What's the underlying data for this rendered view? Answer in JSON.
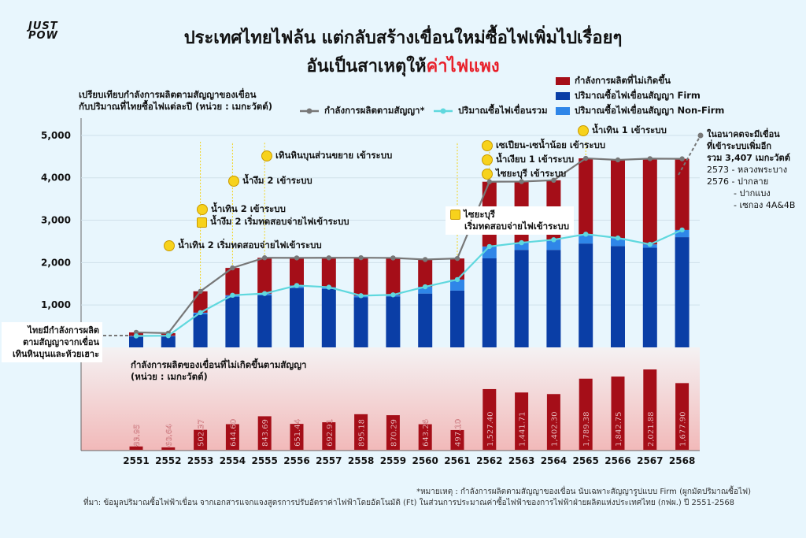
{
  "logo": {
    "line1": "JUST",
    "line2": "POW"
  },
  "title": {
    "line1": "ประเทศไทยไฟล้น แต่กลับสร้างเขื่อนใหม่ซื้อไฟเพิ่มไปเรื่อยๆ",
    "line2_prefix": "อันเป็นสาเหตุให้",
    "line2_highlight": "ค่าไฟแพง"
  },
  "subtitle": {
    "line1": "เปรียบเทียบกำลังการผลิตตามสัญญาของเขื่อน",
    "line2": "กับปริมาณที่ไทยซื้อไฟแต่ละปี (หน่วย : เมกะวัตต์)"
  },
  "legend": {
    "unused": "กำลังการผลิตที่ไม่เกิดขึ้น",
    "firm": "ปริมาณซื้อไฟเขื่อนสัญญา Firm",
    "nonfirm": "ปริมาณซื้อไฟเขื่อนสัญญา Non-Firm",
    "contract": "กำลังการผลิตตามสัญญา*",
    "total": "ปริมาณซื้อไฟเขื่อนรวม"
  },
  "colors": {
    "unused": "#a50e18",
    "firm": "#0a3ea6",
    "nonfirm": "#2f86e8",
    "contract": "#777777",
    "total": "#5fd8de",
    "highlight": "#e8202a"
  },
  "annotations": {
    "a2553": "น้ำเทิน 2 เริ่มทดสอบจ่ายไฟเข้าระบบ",
    "a2554a": "น้ำเทิน 2 เข้าระบบ",
    "a2554b": "น้ำงึม 2 เริ่มทดสอบจ่ายไฟเข้าระบบ",
    "a2555a": "น้ำงึม 2 เข้าระบบ",
    "a2555b": "เทินหินบุนส่วนขยาย เข้าระบบ",
    "a2561a": "ไซยะบุรี",
    "a2561b": "เริ่มทดสอบจ่ายไฟเข้าระบบ",
    "a2562a": "เซเปียน-เซน้ำน้อย เข้าระบบ",
    "a2562b": "น้ำเงียบ 1 เข้าระบบ",
    "a2562c": "ไซยะบุรี เข้าระบบ",
    "a2565": "น้ำเทิน 1 เข้าระบบ"
  },
  "left_note": {
    "line1": "ไทยมีกำลังการผลิต",
    "line2": "ตามสัญญาจากเขื่อน",
    "line3": "เทินหินบุนและห้วยเฮาะ"
  },
  "future_note": {
    "line1": "ในอนาคตจะมีเขื่อน",
    "line2": "ที่เข้าระบบเพิ่มอีก",
    "line3": "รวม 3,407 เมกะวัตต์",
    "item1": "2573 - หลวงพระบาง",
    "item2": "2576 - ปากลาย",
    "item3": "- ปากแบง",
    "item4": "- เซกอง 4A&4B"
  },
  "bottom_title": {
    "line1": "กำลังการผลิตของเขื่อนที่ไม่เกิดขึ้นตามสัญญา",
    "line2": "(หน่วย : เมกะวัตต์)"
  },
  "footnote": "*หมายเหตุ : กำลังการผลิตตามสัญญาของเขื่อน นับเฉพาะสัญญารูปแบบ Firm (ผูกมัดปริมาณซื้อไฟ)",
  "source": "ที่มา: ข้อมูลปริมาณซื้อไฟฟ้าเขื่อน จากเอกสารแจกแจงสูตรการปรับอัตราค่าไฟฟ้าโดยอัตโนมัติ (Ft) ในส่วนการประมาณค่าซื้อไฟฟ้าของการไฟฟ้าฝ่ายผลิตแห่งประเทศไทย (กฟผ.) ปี 2551-2568",
  "chart_data": [
    {
      "type": "bar",
      "title": "เปรียบเทียบกำลังการผลิตตามสัญญาของเขื่อนกับปริมาณที่ไทยซื้อไฟแต่ละปี",
      "ylabel": "เมกะวัตต์",
      "ylim": [
        0,
        5500
      ],
      "yticks": [
        "1,000",
        "2,000",
        "3,000",
        "4,000",
        "5,000"
      ],
      "ytick_values": [
        1000,
        2000,
        3000,
        4000,
        5000
      ],
      "categories": [
        "2551",
        "2552",
        "2553",
        "2554",
        "2555",
        "2556",
        "2557",
        "2558",
        "2559",
        "2560",
        "2561",
        "2562",
        "2563",
        "2564",
        "2565",
        "2566",
        "2567",
        "2568"
      ],
      "series": [
        {
          "name": "ปริมาณซื้อไฟเขื่อนสัญญา Firm",
          "kind": "stack",
          "values": [
            250,
            265,
            780,
            1190,
            1230,
            1400,
            1380,
            1180,
            1200,
            1270,
            1340,
            2100,
            2300,
            2300,
            2450,
            2390,
            2350,
            2600
          ]
        },
        {
          "name": "ปริมาณซื้อไฟเขื่อนสัญญา Non-Firm",
          "kind": "stack",
          "values": [
            20,
            10,
            40,
            40,
            40,
            60,
            40,
            40,
            40,
            160,
            260,
            280,
            170,
            240,
            220,
            190,
            80,
            170
          ]
        },
        {
          "name": "กำลังการผลิตที่ไม่เกิดขึ้น",
          "kind": "stack",
          "values": [
            83.95,
            60.64,
            502.37,
            644.6,
            843.69,
            651.44,
            692.91,
            895.18,
            870.29,
            643.26,
            497.1,
            1527.4,
            1441.71,
            1402.3,
            1789.38,
            1842.75,
            2021.88,
            1677.9
          ]
        },
        {
          "name": "กำลังการผลิตตามสัญญา*",
          "kind": "line",
          "values": [
            354,
            336,
            1322,
            1875,
            2114,
            2111,
            2113,
            2115,
            2110,
            2073,
            2097,
            3907,
            3912,
            3942,
            4459,
            4423,
            4452,
            4448
          ]
        },
        {
          "name": "ปริมาณซื้อไฟเขื่อนรวม",
          "kind": "line",
          "values": [
            270,
            275,
            820,
            1230,
            1270,
            1460,
            1420,
            1220,
            1240,
            1430,
            1600,
            2380,
            2470,
            2540,
            2670,
            2580,
            2430,
            2770
          ]
        }
      ]
    },
    {
      "type": "bar",
      "title": "กำลังการผลิตของเขื่อนที่ไม่เกิดขึ้นตามสัญญา (หน่วย : เมกะวัตต์)",
      "categories": [
        "2551",
        "2552",
        "2553",
        "2554",
        "2555",
        "2556",
        "2557",
        "2558",
        "2559",
        "2560",
        "2561",
        "2562",
        "2563",
        "2564",
        "2565",
        "2566",
        "2567",
        "2568"
      ],
      "values": [
        83.95,
        60.64,
        502.37,
        644.6,
        843.69,
        651.44,
        692.91,
        895.18,
        870.29,
        643.26,
        497.1,
        1527.4,
        1441.71,
        1402.3,
        1789.38,
        1842.75,
        2021.88,
        1677.9
      ],
      "labels": [
        "83.95",
        "60.64",
        "502.37",
        "644.60",
        "843.69",
        "651.44",
        "692.91",
        "895.18",
        "870.29",
        "643.26",
        "497.10",
        "1,527.40",
        "1,441.71",
        "1,402.30",
        "1,789.38",
        "1,842.75",
        "2,021.88",
        "1,677.90"
      ]
    }
  ]
}
